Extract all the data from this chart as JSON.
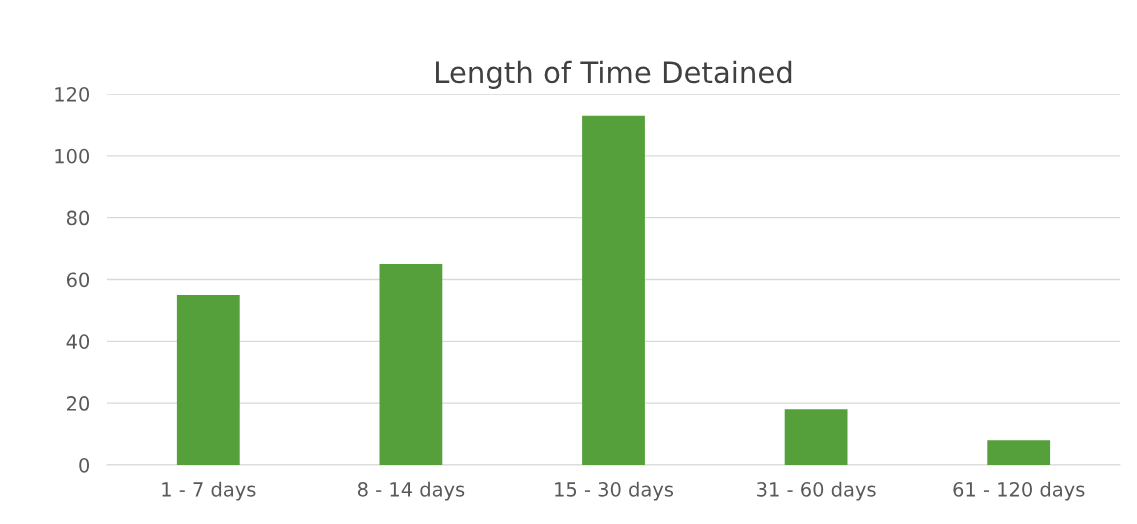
{
  "chart_data": {
    "type": "bar",
    "title": "Length of Time Detained",
    "categories": [
      "1 - 7 days",
      "8 - 14 days",
      "15 - 30 days",
      "31 - 60 days",
      "61 - 120 days"
    ],
    "values": [
      55,
      65,
      113,
      18,
      8
    ],
    "color": "#55a03a",
    "ylim": [
      0,
      120
    ],
    "yticks": [
      0,
      20,
      40,
      60,
      80,
      100,
      120
    ],
    "grid": "y",
    "legend": false
  }
}
